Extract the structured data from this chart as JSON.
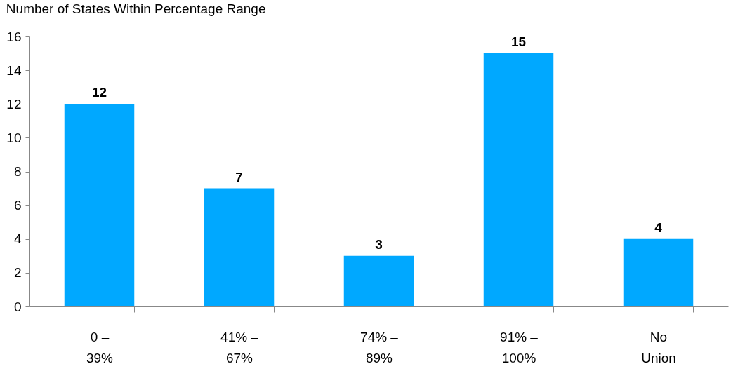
{
  "chart_data": {
    "type": "bar",
    "title": "Number of States Within Percentage Range",
    "categories": [
      "0 – 39%",
      "41% – 67%",
      "74% – 89%",
      "91% – 100%",
      "No Union"
    ],
    "values": [
      12,
      7,
      3,
      15,
      4
    ],
    "color": "#00a8ff",
    "ylim": [
      0,
      16
    ],
    "yticks": [
      0,
      2,
      4,
      6,
      8,
      10,
      12,
      14,
      16
    ],
    "grid": false,
    "data_labels": true
  }
}
